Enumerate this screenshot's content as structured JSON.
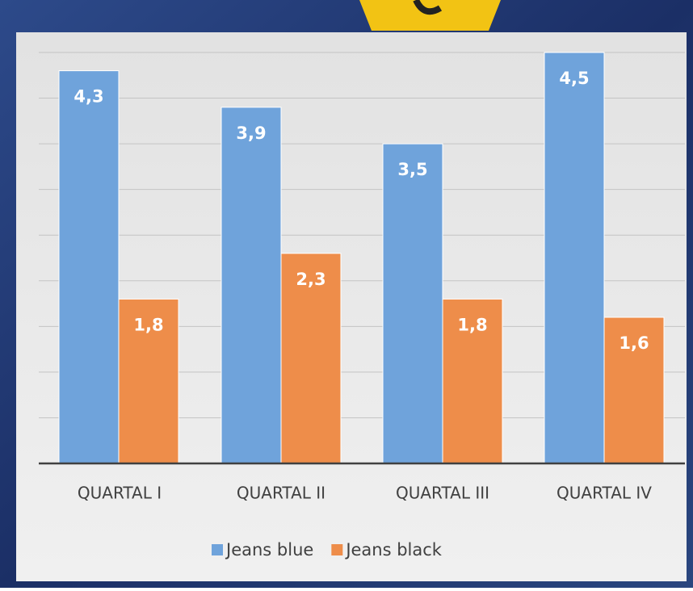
{
  "chart_data": {
    "type": "bar",
    "categories": [
      "QUARTAL I",
      "QUARTAL II",
      "QUARTAL III",
      "QUARTAL IV"
    ],
    "series": [
      {
        "name": "Jeans blue",
        "color": "#6fa3db",
        "values": [
          4.3,
          3.9,
          3.5,
          4.5
        ],
        "value_labels": [
          "4,3",
          "3,9",
          "3,5",
          "4,5"
        ]
      },
      {
        "name": "Jeans black",
        "color": "#ee8d4a",
        "values": [
          1.8,
          2.3,
          1.8,
          1.6
        ],
        "value_labels": [
          "1,8",
          "2,3",
          "1,8",
          "1,6"
        ]
      }
    ],
    "ylim": [
      0,
      4.5
    ],
    "yticks": [
      0,
      0.5,
      1,
      1.5,
      2,
      2.5,
      3,
      3.5,
      4,
      4.5
    ],
    "grid": true,
    "legend": "bottom"
  }
}
